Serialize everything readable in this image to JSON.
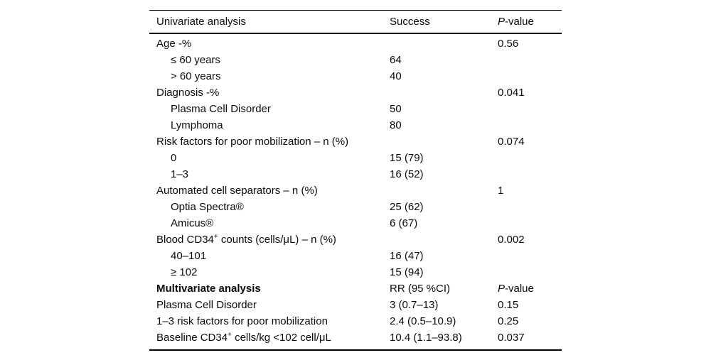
{
  "page": {
    "background": "#ffffff",
    "text_color": "#0a0a0a",
    "rule_color": "#000000"
  },
  "table": {
    "header": {
      "col1": "Univariate analysis",
      "col2": "Success",
      "p_prefix": "P",
      "p_rest": "-value"
    },
    "rows": [
      {
        "label": "Age -%",
        "success": "",
        "p": "0.56",
        "indent": false,
        "bold": false,
        "p_italic_first": false
      },
      {
        "label": "≤ 60 years",
        "success": "64",
        "p": "",
        "indent": true,
        "bold": false,
        "p_italic_first": false
      },
      {
        "label": "> 60 years",
        "success": "40",
        "p": "",
        "indent": true,
        "bold": false,
        "p_italic_first": false
      },
      {
        "label": "Diagnosis -%",
        "success": "",
        "p": "0.041",
        "indent": false,
        "bold": false,
        "p_italic_first": false
      },
      {
        "label": "Plasma Cell Disorder",
        "success": "50",
        "p": "",
        "indent": true,
        "bold": false,
        "p_italic_first": false
      },
      {
        "label": "Lymphoma",
        "success": "80",
        "p": "",
        "indent": true,
        "bold": false,
        "p_italic_first": false
      },
      {
        "label": "Risk factors for poor mobilization – n (%)",
        "success": "",
        "p": "0.074",
        "indent": false,
        "bold": false,
        "p_italic_first": false
      },
      {
        "label": "0",
        "success": "15 (79)",
        "p": "",
        "indent": true,
        "bold": false,
        "p_italic_first": false
      },
      {
        "label": "1–3",
        "success": "16 (52)",
        "p": "",
        "indent": true,
        "bold": false,
        "p_italic_first": false
      },
      {
        "label": "Automated cell separators – n (%)",
        "success": "",
        "p": "1",
        "indent": false,
        "bold": false,
        "p_italic_first": false
      },
      {
        "label": "Optia Spectra®",
        "success": "25 (62)",
        "p": "",
        "indent": true,
        "bold": false,
        "p_italic_first": false
      },
      {
        "label": "Amicus®",
        "success": "6 (67)",
        "p": "",
        "indent": true,
        "bold": false,
        "p_italic_first": false
      },
      {
        "label": "Blood CD34⁺ counts (cells/μL) – n (%)",
        "success": "",
        "p": "0.002",
        "indent": false,
        "bold": false,
        "p_italic_first": false
      },
      {
        "label": "40–101",
        "success": "16 (47)",
        "p": "",
        "indent": true,
        "bold": false,
        "p_italic_first": false
      },
      {
        "label": "≥ 102",
        "success": "15 (94)",
        "p": "",
        "indent": true,
        "bold": false,
        "p_italic_first": false
      },
      {
        "label": "Multivariate analysis",
        "success": "RR (95 %CI)",
        "p": "P-value",
        "indent": false,
        "bold": true,
        "p_italic_first": true
      },
      {
        "label": "Plasma Cell Disorder",
        "success": "3 (0.7–13)",
        "p": "0.15",
        "indent": false,
        "bold": false,
        "p_italic_first": false
      },
      {
        "label": "1–3 risk factors for poor mobilization",
        "success": "2.4 (0.5–10.9)",
        "p": "0.25",
        "indent": false,
        "bold": false,
        "p_italic_first": false
      },
      {
        "label": "Baseline CD34⁺ cells/kg <102 cell/μL",
        "success": "10.4 (1.1–93.8)",
        "p": "0.037",
        "indent": false,
        "bold": false,
        "p_italic_first": false
      }
    ]
  }
}
